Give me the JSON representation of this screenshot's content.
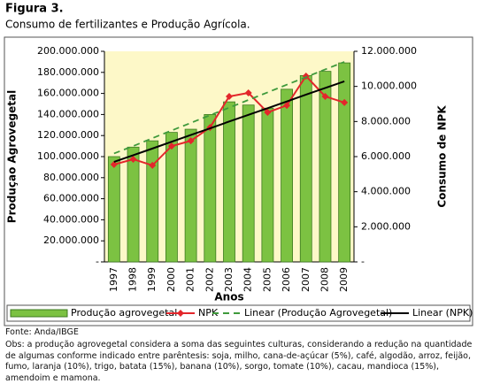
{
  "chart_data": {
    "type": "bar",
    "title": "Figura 3.",
    "subtitle": "Consumo de fertilizantes e Produção Agrícola.",
    "y_label": "Produçao Agrovegetal",
    "y2_label": "Consumo de NPK",
    "x_label": "Anos",
    "categories": [
      "1997",
      "1998",
      "1999",
      "2000",
      "2001",
      "2002",
      "2003",
      "2004",
      "2005",
      "2006",
      "2007",
      "2008",
      "2009"
    ],
    "series": [
      {
        "name": "Produção agrovegetal",
        "type": "bar",
        "color": "#7cc242",
        "values": [
          100000000,
          109000000,
          115000000,
          123000000,
          126000000,
          140000000,
          152000000,
          149000000,
          146000000,
          164000000,
          177000000,
          181000000,
          189000000
        ]
      },
      {
        "name": "NPK",
        "type": "line",
        "axis": "y2",
        "marker": "diamond",
        "color": "#e3262b",
        "values": [
          5550000,
          5850000,
          5500000,
          6600000,
          6900000,
          7660000,
          9430000,
          9630000,
          8520000,
          8920000,
          10590000,
          9430000,
          9080000
        ]
      },
      {
        "name": "Linear (Produção Agrovegetal)",
        "type": "line",
        "dash": true,
        "color": "#3f9a3c",
        "values": [
          103000000,
          110000000,
          117500000,
          124800000,
          132000000,
          139300000,
          146500000,
          153800000,
          161000000,
          168300000,
          175500000,
          182800000,
          190000000
        ]
      },
      {
        "name": "Linear (NPK)",
        "type": "line",
        "axis": "y2",
        "color": "#000000",
        "values": [
          5700000,
          6080000,
          6460000,
          6850000,
          7230000,
          7610000,
          8000000,
          8380000,
          8760000,
          9140000,
          9530000,
          9910000,
          10290000
        ]
      }
    ],
    "ylim": [
      0,
      200000000
    ],
    "yticks": [
      {
        "value": 0,
        "label": "-"
      },
      {
        "value": 20000000,
        "label": "20.000.000"
      },
      {
        "value": 40000000,
        "label": "40.000.000"
      },
      {
        "value": 60000000,
        "label": "60.000.000"
      },
      {
        "value": 80000000,
        "label": "80.000.000"
      },
      {
        "value": 100000000,
        "label": "100.000.000"
      },
      {
        "value": 120000000,
        "label": "120.000.000"
      },
      {
        "value": 140000000,
        "label": "140.000.000"
      },
      {
        "value": 160000000,
        "label": "160.000.000"
      },
      {
        "value": 180000000,
        "label": "180.000.000"
      },
      {
        "value": 200000000,
        "label": "200.000.000"
      }
    ],
    "y2lim": [
      0,
      12000000
    ],
    "y2ticks": [
      {
        "value": 0,
        "label": "-"
      },
      {
        "value": 2000000,
        "label": "2.000.000"
      },
      {
        "value": 4000000,
        "label": "4.000.000"
      },
      {
        "value": 6000000,
        "label": "6.000.000"
      },
      {
        "value": 8000000,
        "label": "8.000.000"
      },
      {
        "value": 10000000,
        "label": "10.000.000"
      },
      {
        "value": 12000000,
        "label": "12.000.000"
      }
    ],
    "source": "Fonte: Anda/IBGE",
    "note": "Obs: a produção agrovegetal considera a soma das seguintes culturas, considerando a redução na quantidade de algumas conforme indicado entre parêntesis: soja, milho, cana-de-açúcar (5%), café, algodão, arroz, feijão, fumo, laranja (10%), trigo, batata (15%), banana (10%), sorgo, tomate (10%), cacau, mandioca (15%), amendoim e mamona."
  }
}
